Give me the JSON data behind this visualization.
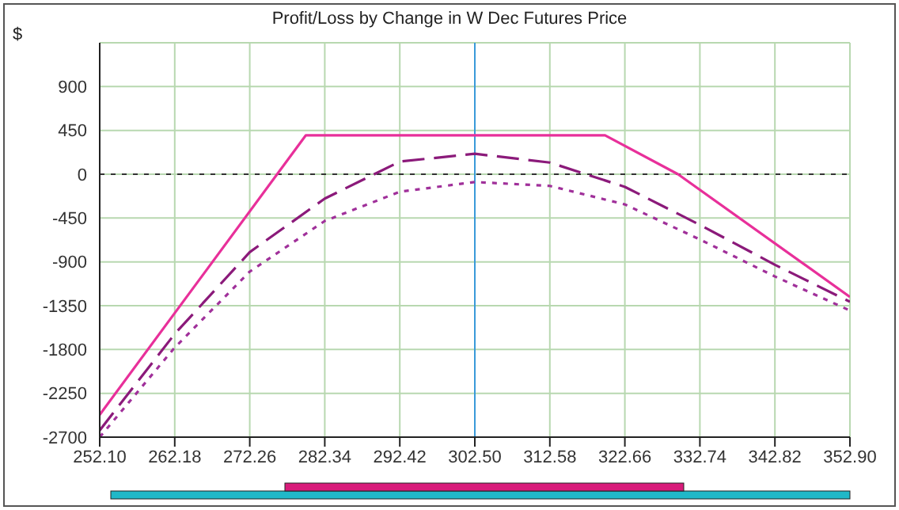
{
  "chart_data": {
    "type": "line",
    "title": "Profit/Loss by Change in W Dec Futures Price",
    "ylabel": "$",
    "xlim": [
      252.1,
      352.9
    ],
    "xticks": [
      {
        "value": 252.1,
        "label": "252.10"
      },
      262.18,
      272.26,
      282.34,
      292.42,
      {
        "value": 302.5,
        "label": "302.50"
      },
      312.58,
      322.66,
      332.74,
      342.82,
      {
        "value": 352.9,
        "label": "352.90"
      }
    ],
    "ylim": [
      -2700,
      1350
    ],
    "yticks": [
      -2700,
      -2250,
      -1800,
      -1350,
      -900,
      -450,
      0,
      450,
      900
    ],
    "grid": true,
    "marker": "none",
    "series": [
      {
        "color": "#e8309a",
        "line_style": "solid",
        "x": [
          252.1,
          279.8,
          320.0,
          329.8,
          352.9
        ],
        "values": [
          -2470,
          400,
          400,
          0,
          -1260
        ]
      },
      {
        "color": "#8b1a7a",
        "line_style": "dashed",
        "x": [
          252.1,
          262.18,
          272.26,
          282.34,
          292.42,
          302.5,
          312.58,
          322.66,
          332.74,
          342.82,
          352.9
        ],
        "values": [
          -2630,
          -1640,
          -800,
          -250,
          130,
          210,
          120,
          -130,
          -520,
          -930,
          -1310
        ]
      },
      {
        "color": "#a0309a",
        "line_style": "dotted",
        "x": [
          252.1,
          262.18,
          272.26,
          282.34,
          292.42,
          302.5,
          312.58,
          322.66,
          332.74,
          342.82,
          352.9
        ],
        "values": [
          -2700,
          -1780,
          -1000,
          -480,
          -180,
          -80,
          -120,
          -310,
          -670,
          -1050,
          -1400
        ]
      }
    ],
    "ref_lines": [
      {
        "axis": "y",
        "value": 0,
        "color": "#333333",
        "line_style": "dotted"
      },
      {
        "axis": "x",
        "value": 302.5,
        "color": "#3a9ad9",
        "line_style": "solid"
      }
    ]
  }
}
